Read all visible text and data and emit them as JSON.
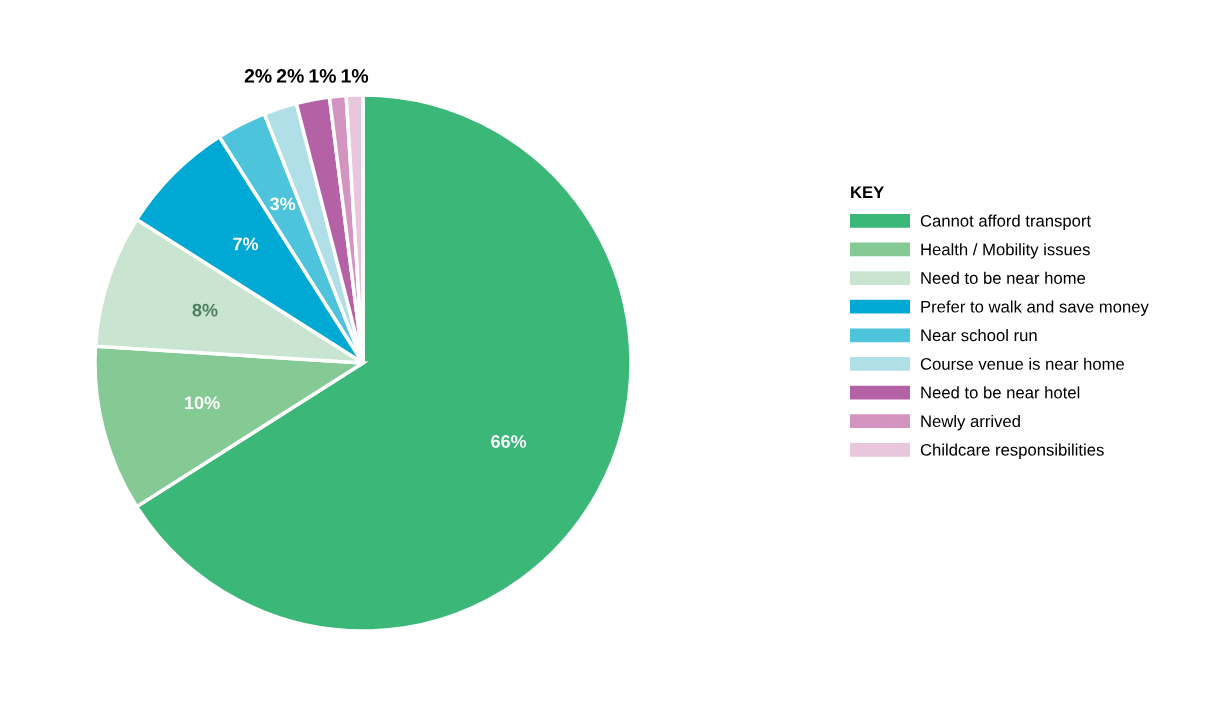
{
  "chart_data": {
    "type": "pie",
    "categories": [
      "Cannot afford transport",
      "Health / Mobility issues",
      "Need to be near home",
      "Prefer to walk and save money",
      "Near school run",
      "Course venue is near home",
      "Need to be near hotel",
      "Newly arrived",
      "Childcare responsibilities"
    ],
    "values": [
      66,
      10,
      8,
      7,
      3,
      2,
      2,
      1,
      1
    ],
    "value_labels": [
      "66%",
      "10%",
      "8%",
      "7%",
      "3%",
      "2%",
      "2%",
      "1%",
      "1%"
    ],
    "colors": [
      "#3bb878",
      "#85c995",
      "#c9e5d2",
      "#00a8d4",
      "#4dc4dc",
      "#b1dfe8",
      "#b462a5",
      "#d394c2",
      "#e8c6db"
    ],
    "legend": "right",
    "legend_title": "KEY"
  }
}
